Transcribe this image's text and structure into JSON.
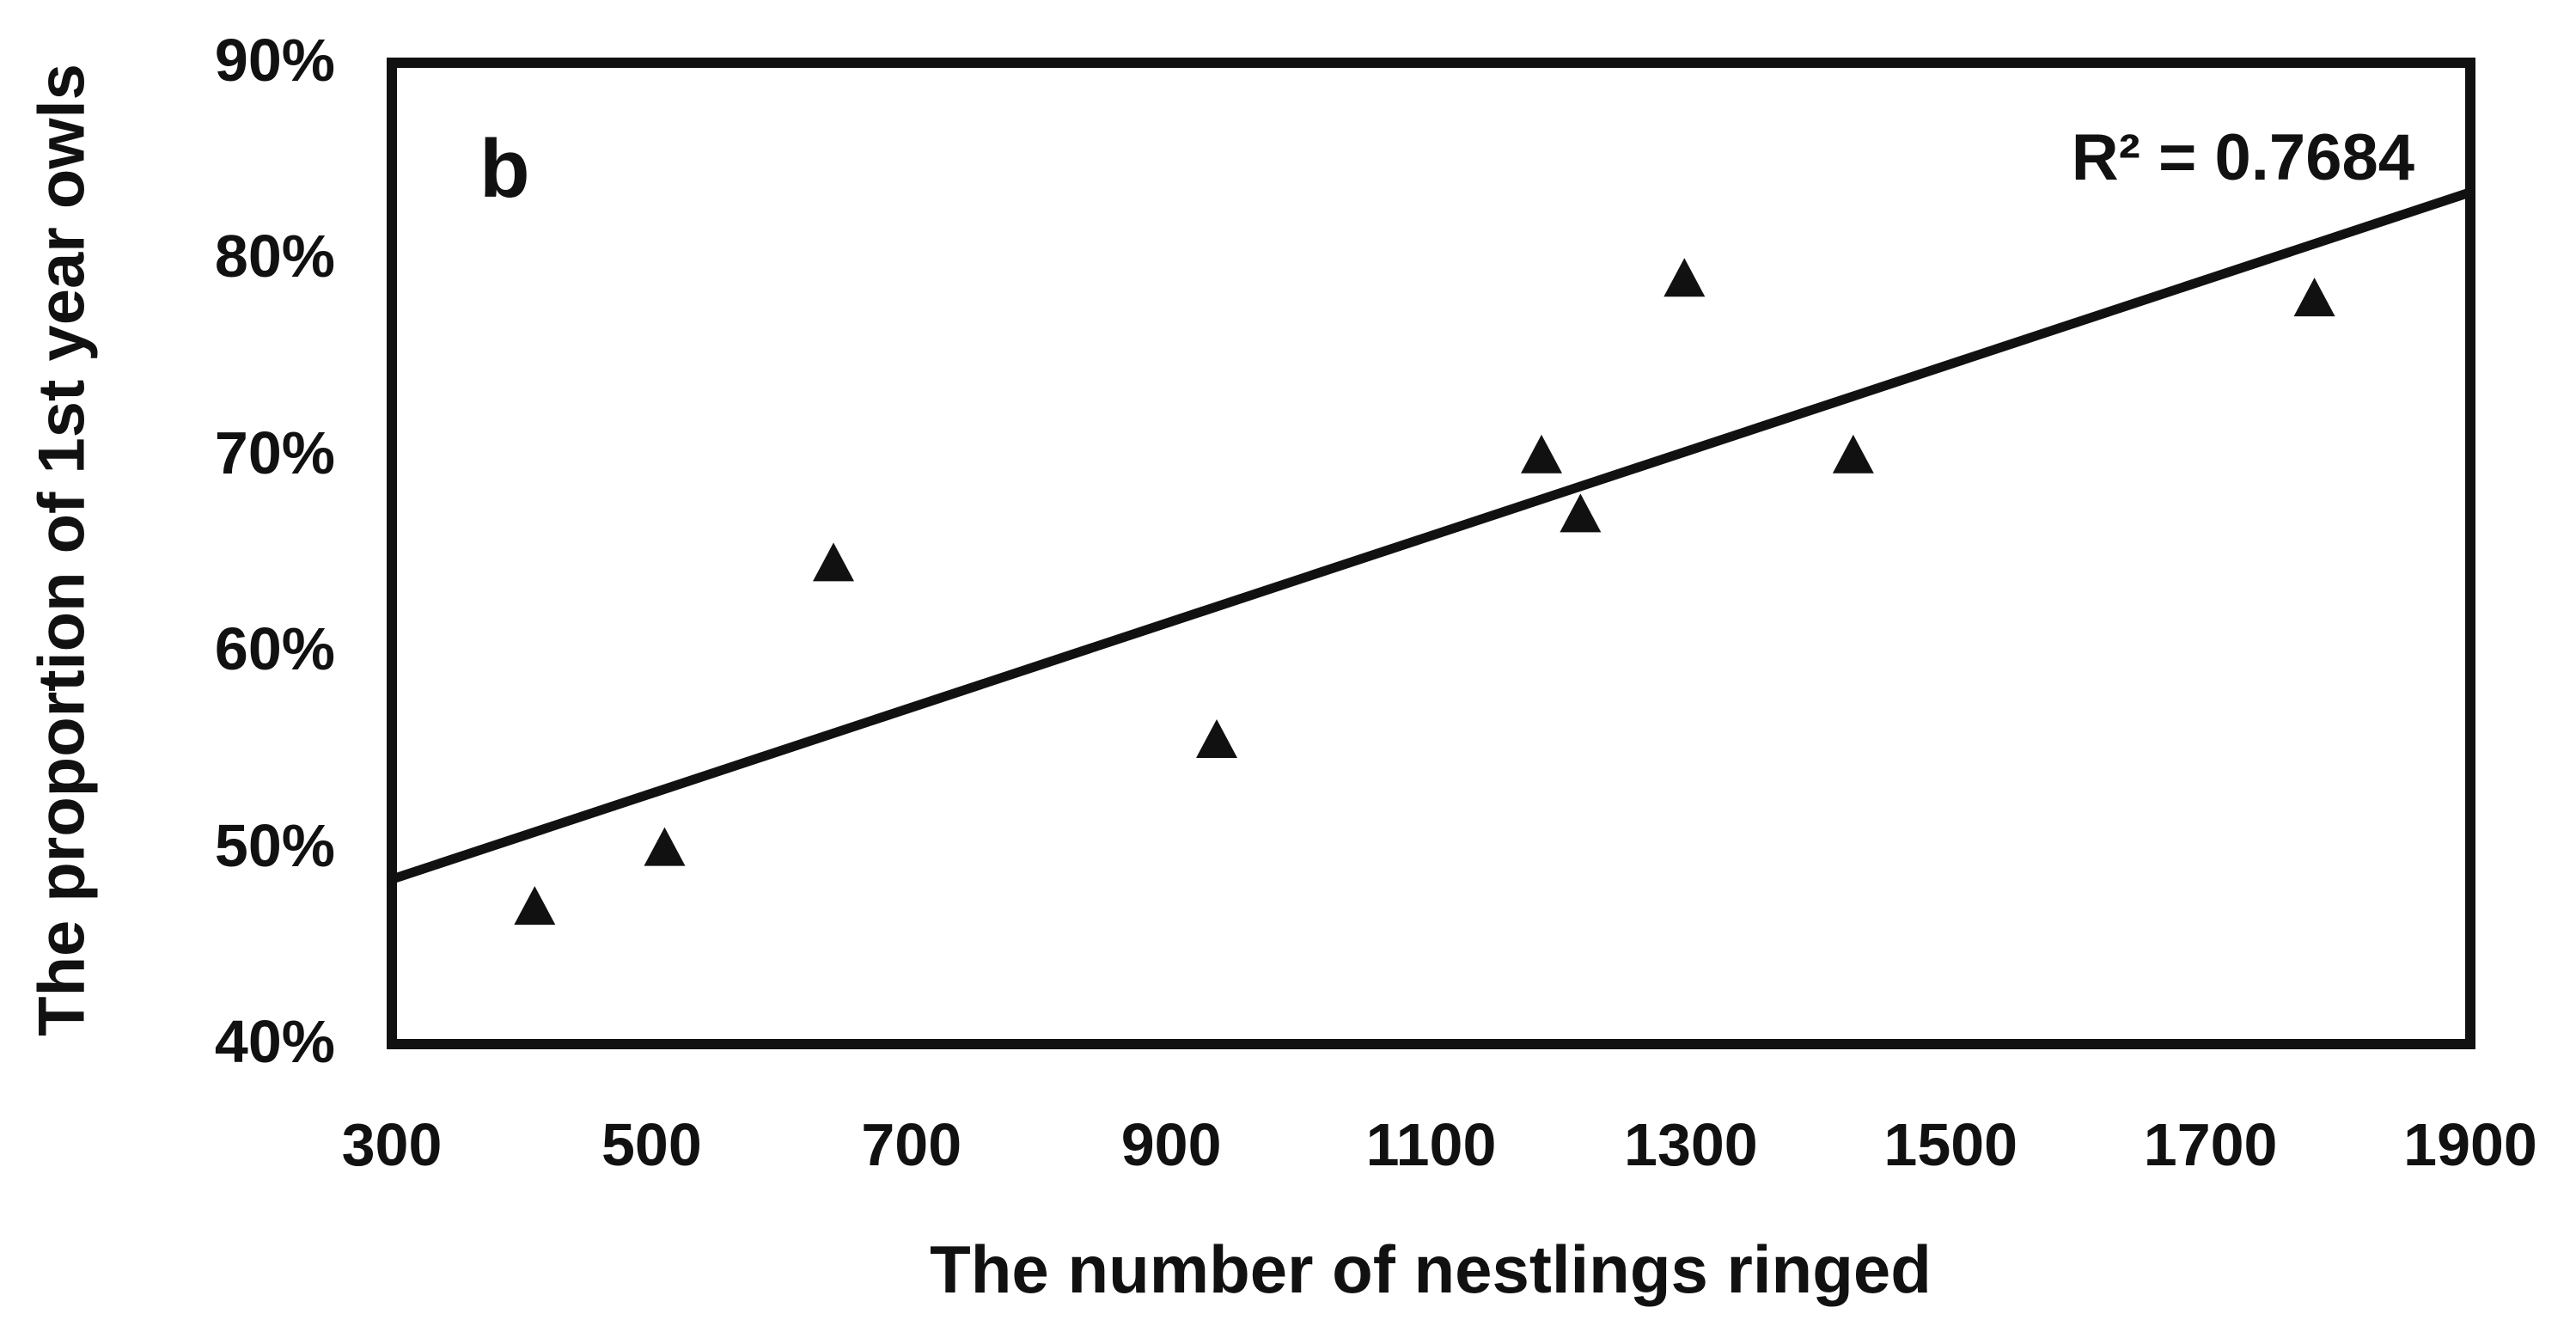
{
  "figure": {
    "panel_label": "b",
    "r_squared_label": "R² = 0.7684"
  },
  "chart_data": {
    "type": "scatter",
    "title": "",
    "xlabel": "The number of nestlings ringed",
    "ylabel": "The proportion of 1st year owls",
    "xlim": [
      300,
      1900
    ],
    "ylim_percent": [
      40,
      90
    ],
    "x_ticks": [
      300,
      500,
      700,
      900,
      1100,
      1300,
      1500,
      1700,
      1900
    ],
    "y_ticks_percent": [
      40,
      50,
      60,
      70,
      80,
      90
    ],
    "y_tick_suffix": "%",
    "grid": false,
    "legend": "none",
    "marker": "filled-triangle",
    "points": [
      {
        "x": 410,
        "y_percent": 47
      },
      {
        "x": 510,
        "y_percent": 50
      },
      {
        "x": 640,
        "y_percent": 64.5
      },
      {
        "x": 935,
        "y_percent": 55.5
      },
      {
        "x": 1185,
        "y_percent": 70
      },
      {
        "x": 1215,
        "y_percent": 67
      },
      {
        "x": 1295,
        "y_percent": 79
      },
      {
        "x": 1425,
        "y_percent": 70
      },
      {
        "x": 1780,
        "y_percent": 78
      }
    ],
    "trendline": {
      "type": "linear",
      "x1": 300,
      "y1_percent": 48.4,
      "x2": 1900,
      "y2_percent": 83.4,
      "r_squared": 0.7684
    },
    "colors": {
      "marker": "#111111",
      "line": "#111111",
      "text": "#111111",
      "border": "#111111",
      "background": "#ffffff"
    }
  }
}
